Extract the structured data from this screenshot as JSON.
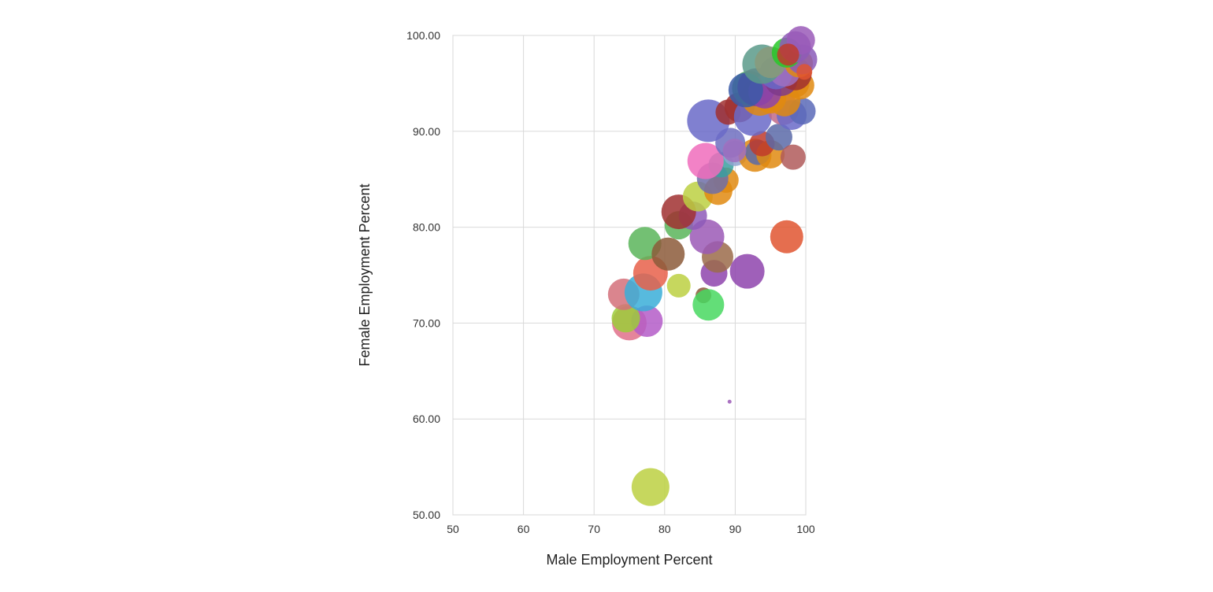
{
  "chart_data": {
    "type": "scatter",
    "title": "",
    "xlabel": "Male Employment Percent",
    "ylabel": "Female Employment Percent",
    "xlim": [
      50,
      100
    ],
    "ylim": [
      50,
      100
    ],
    "x_ticks": [
      "50",
      "60",
      "70",
      "80",
      "90",
      "100"
    ],
    "y_ticks": [
      "50.00",
      "60.00",
      "70.00",
      "80.00",
      "90.00",
      "100.00"
    ],
    "grid": true,
    "legend": "none",
    "size_encoding": "bubble",
    "points": [
      {
        "x": 78.0,
        "y": 52.9,
        "size": 24,
        "color": "#bcd042"
      },
      {
        "x": 89.2,
        "y": 61.8,
        "size": 2.5,
        "color": "#9b59b6"
      },
      {
        "x": 75.0,
        "y": 70.0,
        "size": 22,
        "color": "#e0708a"
      },
      {
        "x": 77.5,
        "y": 70.2,
        "size": 20,
        "color": "#b45cc8"
      },
      {
        "x": 74.5,
        "y": 70.5,
        "size": 18,
        "color": "#9ccc3a"
      },
      {
        "x": 74.2,
        "y": 73.0,
        "size": 20,
        "color": "#d4707a"
      },
      {
        "x": 77.0,
        "y": 73.2,
        "size": 24,
        "color": "#3aaed8"
      },
      {
        "x": 78.0,
        "y": 75.2,
        "size": 22,
        "color": "#e8604a"
      },
      {
        "x": 77.2,
        "y": 78.3,
        "size": 21,
        "color": "#5ab55a"
      },
      {
        "x": 80.5,
        "y": 77.2,
        "size": 21,
        "color": "#8c5a3a"
      },
      {
        "x": 82.0,
        "y": 73.9,
        "size": 15,
        "color": "#bcd042"
      },
      {
        "x": 85.5,
        "y": 72.9,
        "size": 10,
        "color": "#8c5a3a"
      },
      {
        "x": 86.2,
        "y": 71.9,
        "size": 20,
        "color": "#48d860"
      },
      {
        "x": 87.0,
        "y": 75.2,
        "size": 17,
        "color": "#8e44ad"
      },
      {
        "x": 87.5,
        "y": 76.9,
        "size": 20,
        "color": "#9b6b4a"
      },
      {
        "x": 91.7,
        "y": 75.4,
        "size": 22,
        "color": "#8e44ad"
      },
      {
        "x": 86.0,
        "y": 79.0,
        "size": 22,
        "color": "#9b59b6"
      },
      {
        "x": 82.0,
        "y": 80.2,
        "size": 18,
        "color": "#5ab55a"
      },
      {
        "x": 84.0,
        "y": 81.2,
        "size": 18,
        "color": "#8e5ab8"
      },
      {
        "x": 82.0,
        "y": 81.6,
        "size": 22,
        "color": "#a03030"
      },
      {
        "x": 97.3,
        "y": 79.0,
        "size": 21,
        "color": "#e05530"
      },
      {
        "x": 84.7,
        "y": 83.2,
        "size": 19,
        "color": "#bcd042"
      },
      {
        "x": 87.6,
        "y": 83.8,
        "size": 18,
        "color": "#e08a10"
      },
      {
        "x": 88.7,
        "y": 84.9,
        "size": 16,
        "color": "#e08a10"
      },
      {
        "x": 86.8,
        "y": 85.1,
        "size": 20,
        "color": "#6e6ea8"
      },
      {
        "x": 88.0,
        "y": 86.5,
        "size": 16,
        "color": "#3aa0a0"
      },
      {
        "x": 85.8,
        "y": 86.9,
        "size": 23,
        "color": "#f06cbc"
      },
      {
        "x": 90.0,
        "y": 87.7,
        "size": 16,
        "color": "#8fa4d0"
      },
      {
        "x": 92.8,
        "y": 87.5,
        "size": 21,
        "color": "#e08a10"
      },
      {
        "x": 93.2,
        "y": 87.8,
        "size": 16,
        "color": "#5a6aa8"
      },
      {
        "x": 95.0,
        "y": 87.6,
        "size": 18,
        "color": "#e08a10"
      },
      {
        "x": 93.8,
        "y": 88.7,
        "size": 16,
        "color": "#c0392b"
      },
      {
        "x": 96.2,
        "y": 89.4,
        "size": 17,
        "color": "#5a6aa8"
      },
      {
        "x": 98.2,
        "y": 87.3,
        "size": 16,
        "color": "#b05a5a"
      },
      {
        "x": 89.3,
        "y": 88.8,
        "size": 19,
        "color": "#6e6ec0"
      },
      {
        "x": 89.9,
        "y": 88.0,
        "size": 15,
        "color": "#a070c0"
      },
      {
        "x": 86.2,
        "y": 91.1,
        "size": 27,
        "color": "#6a6ac8"
      },
      {
        "x": 89.0,
        "y": 92.0,
        "size": 16,
        "color": "#a03030"
      },
      {
        "x": 90.6,
        "y": 92.5,
        "size": 19,
        "color": "#a03030"
      },
      {
        "x": 92.5,
        "y": 91.5,
        "size": 24,
        "color": "#6a6ac8"
      },
      {
        "x": 96.8,
        "y": 92.3,
        "size": 20,
        "color": "#c06a8a"
      },
      {
        "x": 98.0,
        "y": 91.7,
        "size": 19,
        "color": "#6a6ac8"
      },
      {
        "x": 99.5,
        "y": 92.1,
        "size": 17,
        "color": "#5a6ab8"
      },
      {
        "x": 93.5,
        "y": 93.6,
        "size": 24,
        "color": "#e08a10"
      },
      {
        "x": 95.0,
        "y": 93.5,
        "size": 20,
        "color": "#e08a10"
      },
      {
        "x": 97.0,
        "y": 93.2,
        "size": 20,
        "color": "#e08a10"
      },
      {
        "x": 92.0,
        "y": 94.5,
        "size": 22,
        "color": "#5ab55a"
      },
      {
        "x": 93.0,
        "y": 94.6,
        "size": 24,
        "color": "#7e3a8a"
      },
      {
        "x": 94.2,
        "y": 94.1,
        "size": 21,
        "color": "#8e44ad"
      },
      {
        "x": 91.5,
        "y": 94.3,
        "size": 22,
        "color": "#3a5aa8"
      },
      {
        "x": 98.5,
        "y": 95.0,
        "size": 18,
        "color": "#e08a10"
      },
      {
        "x": 99.2,
        "y": 94.8,
        "size": 18,
        "color": "#e08a10"
      },
      {
        "x": 96.5,
        "y": 95.4,
        "size": 21,
        "color": "#7e3a8a"
      },
      {
        "x": 98.5,
        "y": 96.0,
        "size": 21,
        "color": "#a03030"
      },
      {
        "x": 95.8,
        "y": 96.1,
        "size": 21,
        "color": "#6a6ac8"
      },
      {
        "x": 97.0,
        "y": 96.3,
        "size": 20,
        "color": "#a070c0"
      },
      {
        "x": 93.8,
        "y": 97.0,
        "size": 25,
        "color": "#5a9a8a"
      },
      {
        "x": 95.0,
        "y": 97.2,
        "size": 20,
        "color": "#8a9a7a"
      },
      {
        "x": 99.0,
        "y": 97.1,
        "size": 18,
        "color": "#e08a10"
      },
      {
        "x": 99.5,
        "y": 97.5,
        "size": 19,
        "color": "#8a5ab8"
      },
      {
        "x": 97.3,
        "y": 98.2,
        "size": 19,
        "color": "#28c828"
      },
      {
        "x": 98.5,
        "y": 98.8,
        "size": 20,
        "color": "#8e5ab8"
      },
      {
        "x": 99.3,
        "y": 99.5,
        "size": 18,
        "color": "#9a5ab8"
      },
      {
        "x": 97.5,
        "y": 98.0,
        "size": 14,
        "color": "#c0392b"
      },
      {
        "x": 99.8,
        "y": 96.2,
        "size": 10,
        "color": "#e05530"
      }
    ]
  }
}
